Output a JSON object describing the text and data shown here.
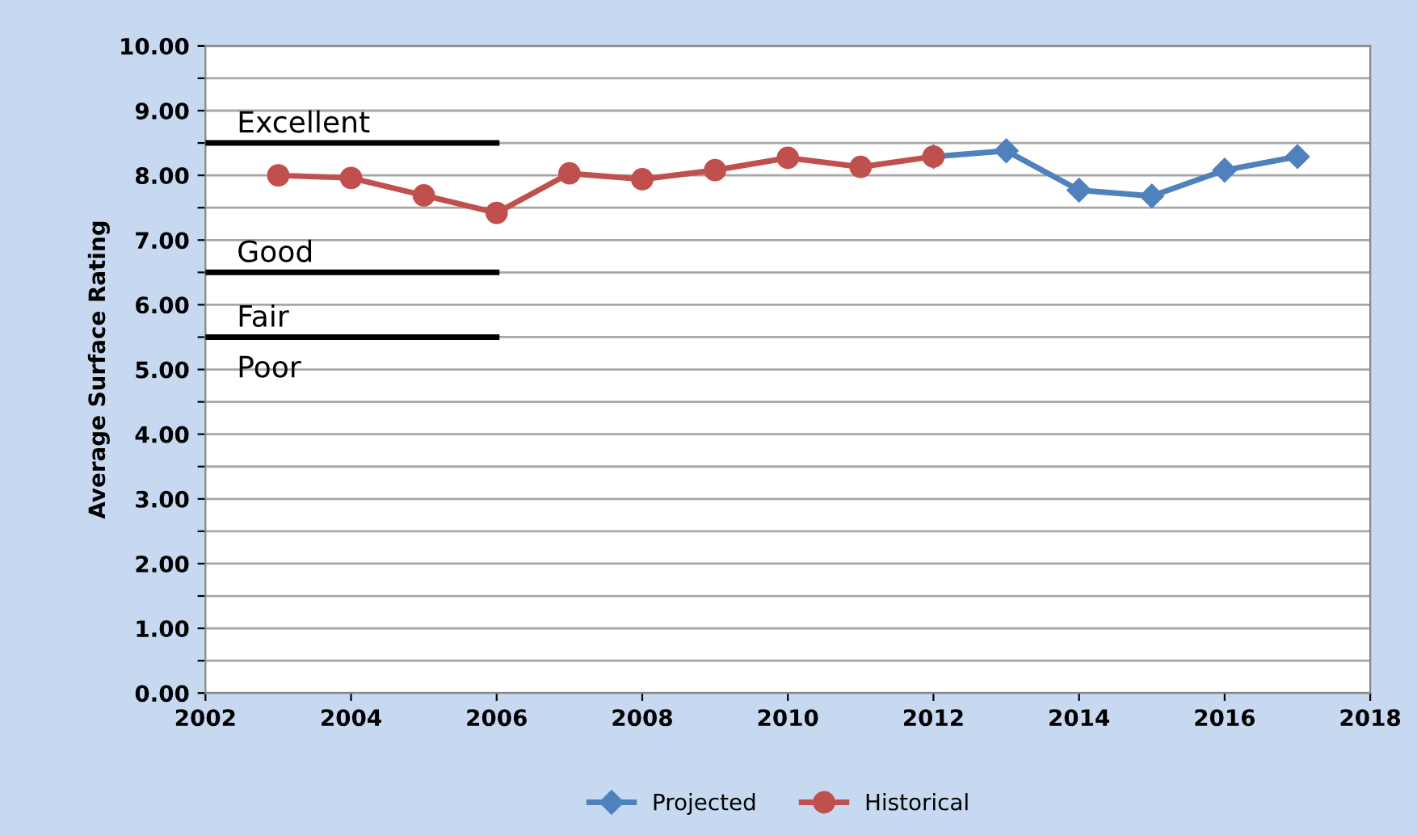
{
  "chart_data": {
    "type": "line",
    "ylabel": "Average Surface Rating",
    "xlim": [
      2002,
      2018
    ],
    "xticks": [
      2002,
      2004,
      2006,
      2008,
      2010,
      2012,
      2014,
      2016,
      2018
    ],
    "ylim": [
      0,
      10
    ],
    "yticks": [
      {
        "value": 0,
        "label": "0.00"
      },
      {
        "value": 0.5,
        "label": null
      },
      {
        "value": 1,
        "label": "1.00"
      },
      {
        "value": 1.5,
        "label": null
      },
      {
        "value": 2,
        "label": "2.00"
      },
      {
        "value": 2.5,
        "label": null
      },
      {
        "value": 3,
        "label": "3.00"
      },
      {
        "value": 3.5,
        "label": null
      },
      {
        "value": 4,
        "label": "4.00"
      },
      {
        "value": 4.5,
        "label": null
      },
      {
        "value": 5,
        "label": "5.00"
      },
      {
        "value": 5.5,
        "label": null
      },
      {
        "value": 6,
        "label": "6.00"
      },
      {
        "value": 6.5,
        "label": null
      },
      {
        "value": 7,
        "label": "7.00"
      },
      {
        "value": 7.5,
        "label": null
      },
      {
        "value": 8,
        "label": "8.00"
      },
      {
        "value": 8.5,
        "label": null
      },
      {
        "value": 9,
        "label": "9.00"
      },
      {
        "value": 9.5,
        "label": null
      },
      {
        "value": 10,
        "label": "10.00"
      }
    ],
    "grid": "y",
    "legend": "bottom",
    "series": [
      {
        "name": "Projected",
        "color": "#4f81bd",
        "marker": "diamond",
        "x": [
          2012,
          2013,
          2014,
          2015,
          2016,
          2017
        ],
        "values": [
          8.29,
          8.38,
          7.77,
          7.68,
          8.08,
          8.29
        ]
      },
      {
        "name": "Historical",
        "color": "#c0504d",
        "marker": "circle",
        "x": [
          2003,
          2004,
          2005,
          2006,
          2007,
          2008,
          2009,
          2010,
          2011,
          2012
        ],
        "values": [
          8.0,
          7.96,
          7.69,
          7.42,
          8.03,
          7.94,
          8.08,
          8.27,
          8.13,
          8.29
        ]
      },
      {
        "color": "#000000",
        "marker": "none",
        "x": [
          2002,
          2006
        ],
        "values": [
          8.5,
          8.5
        ]
      },
      {
        "color": "#000000",
        "marker": "none",
        "x": [
          2002,
          2006
        ],
        "values": [
          6.5,
          6.5
        ]
      },
      {
        "color": "#000000",
        "marker": "none",
        "x": [
          2002,
          2006
        ],
        "values": [
          5.5,
          5.5
        ]
      }
    ],
    "annotations": [
      "Excellent",
      "Good",
      "Fair",
      "Poor"
    ]
  }
}
